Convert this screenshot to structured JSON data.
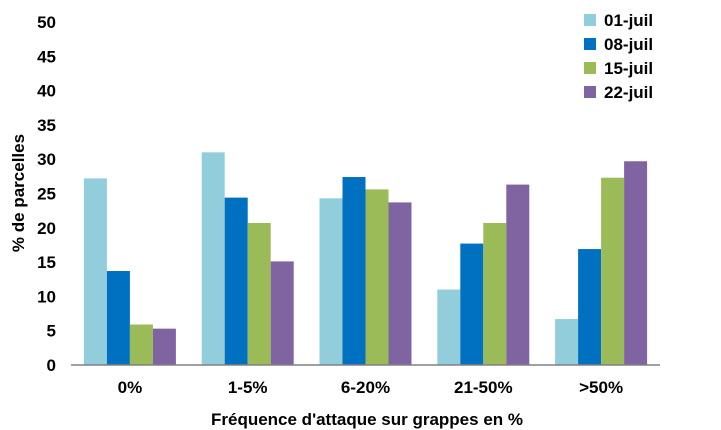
{
  "chart_data": {
    "type": "bar",
    "categories": [
      "0%",
      "1-5%",
      "6-20%",
      "21-50%",
      ">50%"
    ],
    "series": [
      {
        "name": "01-juil",
        "color": "#92CDDC",
        "values": [
          27.2,
          31.0,
          24.3,
          11.0,
          6.7
        ]
      },
      {
        "name": "08-juil",
        "color": "#0070C0",
        "values": [
          13.7,
          24.4,
          27.4,
          17.7,
          16.9
        ]
      },
      {
        "name": "15-juil",
        "color": "#9BBB59",
        "values": [
          5.9,
          20.7,
          25.6,
          20.7,
          27.3
        ]
      },
      {
        "name": "22-juil",
        "color": "#8064A2",
        "values": [
          5.3,
          15.1,
          23.7,
          26.3,
          29.7
        ]
      }
    ],
    "ylim": [
      0,
      50
    ],
    "yticks": [
      0,
      5,
      10,
      15,
      20,
      25,
      30,
      35,
      40,
      45,
      50
    ],
    "xlabel": "Fréquence d'attaque sur grappes en %",
    "ylabel": "% de parcelles",
    "grid": false,
    "legend": "top-right"
  }
}
